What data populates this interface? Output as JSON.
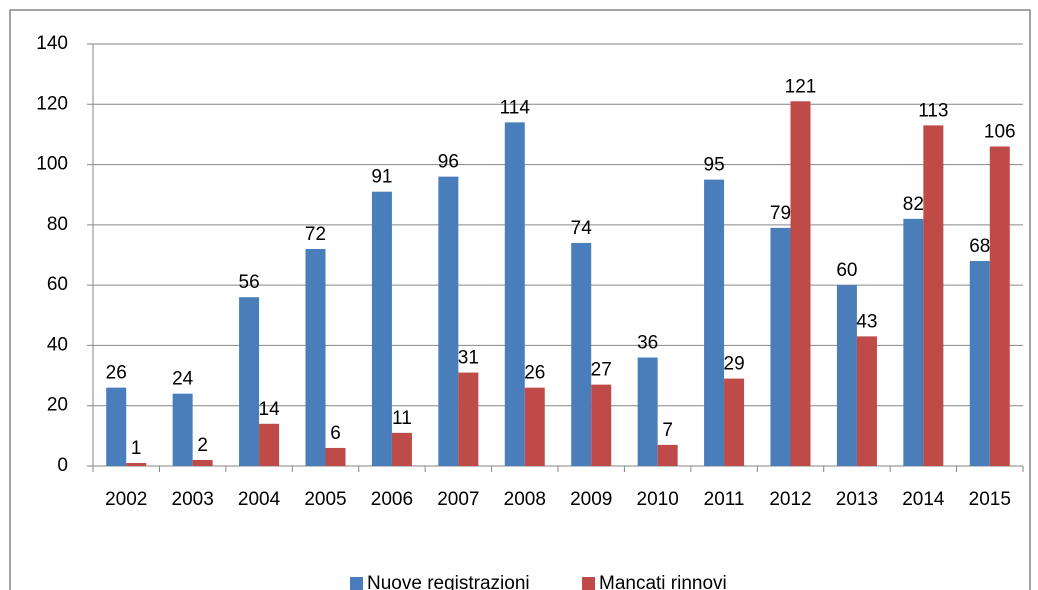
{
  "chart_data": {
    "type": "bar",
    "categories": [
      "2002",
      "2003",
      "2004",
      "2005",
      "2006",
      "2007",
      "2008",
      "2009",
      "2010",
      "2011",
      "2012",
      "2013",
      "2014",
      "2015"
    ],
    "series": [
      {
        "name": "Nuove registrazioni",
        "color": "#4a7ebb",
        "values": [
          26,
          24,
          56,
          72,
          91,
          96,
          114,
          74,
          36,
          95,
          79,
          60,
          82,
          68
        ]
      },
      {
        "name": "Mancati rinnovi",
        "color": "#be4b48",
        "values": [
          1,
          2,
          14,
          6,
          11,
          31,
          26,
          27,
          7,
          29,
          121,
          43,
          113,
          106
        ]
      }
    ],
    "ylim": [
      0,
      140
    ],
    "yticks": [
      0,
      20,
      40,
      60,
      80,
      100,
      120,
      140
    ],
    "grid": true,
    "legend": "bottom"
  }
}
